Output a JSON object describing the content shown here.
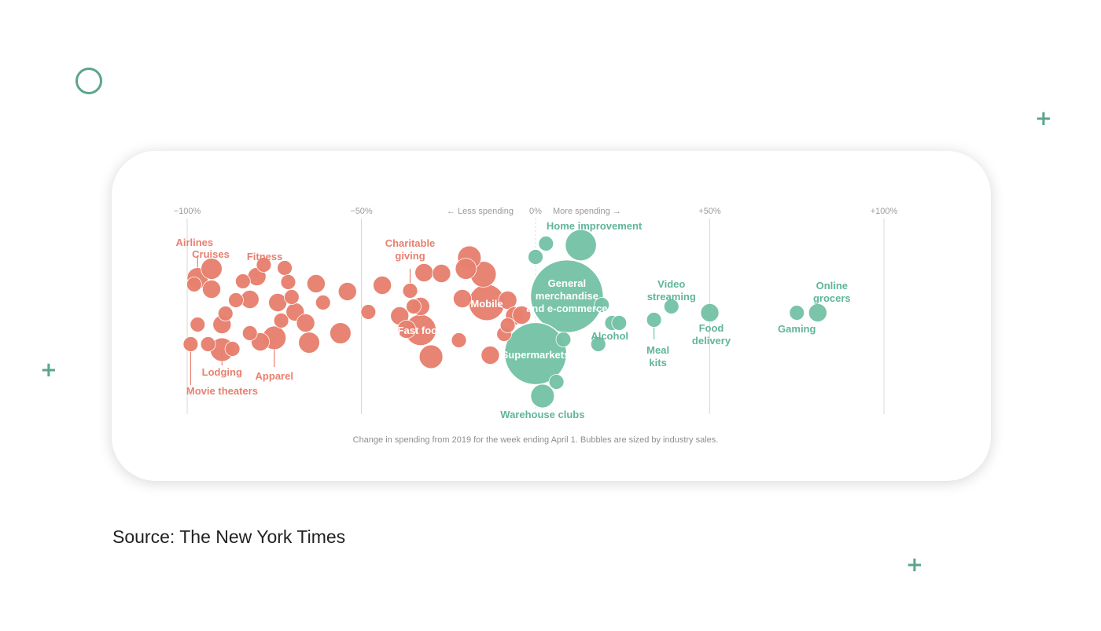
{
  "source_caption": "Source: The New York Times",
  "colors": {
    "decrease": "#e8806e",
    "increase": "#75c2a7",
    "accent": "#5da58a"
  },
  "chart_data": {
    "type": "scatter",
    "title": "",
    "xlabel": "",
    "ylabel": "",
    "xlim": [
      -105,
      105
    ],
    "x_ticks": [
      "−100%",
      "−50%",
      "0%",
      "+50%",
      "+100%"
    ],
    "x_tick_values": [
      -100,
      -50,
      0,
      50,
      100
    ],
    "direction_labels": {
      "less": "← Less spending",
      "more": "More spending →"
    },
    "note": "Change in spending from 2019 for the week ending April 1. Bubbles are sized by industry sales.",
    "series": [
      {
        "points": [
          {
            "label": "Airlines",
            "x": -97,
            "size": 4
          },
          {
            "label": "Cruises",
            "x": -93,
            "size": 4
          },
          {
            "label": "Fitness",
            "x": -80,
            "size": 3
          },
          {
            "label": "Lodging",
            "x": -90,
            "size": 5
          },
          {
            "label": "Movie theaters",
            "x": -99,
            "size": 2
          },
          {
            "label": "Apparel",
            "x": -75,
            "size": 5
          },
          {
            "label": "Charitable giving",
            "x": -36,
            "size": 2
          },
          {
            "label": "Fast food",
            "x": -33,
            "size": 9
          },
          {
            "label": "Mobile",
            "x": -14,
            "size": 12
          },
          {
            "label": "",
            "x": -98,
            "size": 2
          },
          {
            "label": "",
            "x": -97,
            "size": 2
          },
          {
            "label": "",
            "x": -94,
            "size": 2
          },
          {
            "label": "",
            "x": -93,
            "size": 3
          },
          {
            "label": "",
            "x": -90,
            "size": 3
          },
          {
            "label": "",
            "x": -89,
            "size": 2
          },
          {
            "label": "",
            "x": -87,
            "size": 2
          },
          {
            "label": "",
            "x": -86,
            "size": 2
          },
          {
            "label": "",
            "x": -84,
            "size": 2
          },
          {
            "label": "",
            "x": -82,
            "size": 2
          },
          {
            "label": "",
            "x": -82,
            "size": 3
          },
          {
            "label": "",
            "x": -79,
            "size": 3
          },
          {
            "label": "",
            "x": -78,
            "size": 2
          },
          {
            "label": "",
            "x": -74,
            "size": 3
          },
          {
            "label": "",
            "x": -73,
            "size": 2
          },
          {
            "label": "",
            "x": -72,
            "size": 2
          },
          {
            "label": "",
            "x": -71,
            "size": 2
          },
          {
            "label": "",
            "x": -70,
            "size": 2
          },
          {
            "label": "",
            "x": -69,
            "size": 3
          },
          {
            "label": "",
            "x": -66,
            "size": 3
          },
          {
            "label": "",
            "x": -65,
            "size": 4
          },
          {
            "label": "",
            "x": -63,
            "size": 3
          },
          {
            "label": "",
            "x": -61,
            "size": 2
          },
          {
            "label": "",
            "x": -56,
            "size": 4
          },
          {
            "label": "",
            "x": -54,
            "size": 3
          },
          {
            "label": "",
            "x": -48,
            "size": 2
          },
          {
            "label": "",
            "x": -44,
            "size": 3
          },
          {
            "label": "",
            "x": -39,
            "size": 3
          },
          {
            "label": "",
            "x": -37,
            "size": 3
          },
          {
            "label": "",
            "x": -35,
            "size": 2
          },
          {
            "label": "",
            "x": -33,
            "size": 3
          },
          {
            "label": "",
            "x": -32,
            "size": 3
          },
          {
            "label": "",
            "x": -30,
            "size": 5
          },
          {
            "label": "",
            "x": -27,
            "size": 3
          },
          {
            "label": "",
            "x": -22,
            "size": 2
          },
          {
            "label": "",
            "x": -21,
            "size": 3
          },
          {
            "label": "",
            "x": -20,
            "size": 4
          },
          {
            "label": "",
            "x": -19,
            "size": 5
          },
          {
            "label": "",
            "x": -15,
            "size": 6
          },
          {
            "label": "",
            "x": -13,
            "size": 3
          },
          {
            "label": "",
            "x": -9,
            "size": 2
          },
          {
            "label": "",
            "x": -8,
            "size": 3
          },
          {
            "label": "",
            "x": -8,
            "size": 2
          },
          {
            "label": "",
            "x": -6,
            "size": 3
          },
          {
            "label": "",
            "x": -4,
            "size": 3
          }
        ]
      },
      {
        "points": [
          {
            "label": "Home improvement",
            "x": 13,
            "size": 9
          },
          {
            "label": "General merchandise and e-commerce",
            "x": 9,
            "size": 48
          },
          {
            "label": "Supermarkets",
            "x": 0,
            "size": 35
          },
          {
            "label": "Warehouse clubs",
            "x": 2,
            "size": 5
          },
          {
            "label": "Alcohol",
            "x": 19,
            "size": 2
          },
          {
            "label": "Video streaming",
            "x": 39,
            "size": 2
          },
          {
            "label": "Meal kits",
            "x": 34,
            "size": 2
          },
          {
            "label": "Food delivery",
            "x": 50,
            "size": 3
          },
          {
            "label": "Gaming",
            "x": 75,
            "size": 2
          },
          {
            "label": "Online grocers",
            "x": 81,
            "size": 3
          },
          {
            "label": "",
            "x": 3,
            "size": 2
          },
          {
            "label": "",
            "x": 0,
            "size": 2
          },
          {
            "label": "",
            "x": 22,
            "size": 2
          },
          {
            "label": "",
            "x": 24,
            "size": 2
          },
          {
            "label": "",
            "x": 18,
            "size": 2
          },
          {
            "label": "",
            "x": 8,
            "size": 2
          },
          {
            "label": "",
            "x": 6,
            "size": 2
          }
        ]
      }
    ]
  }
}
